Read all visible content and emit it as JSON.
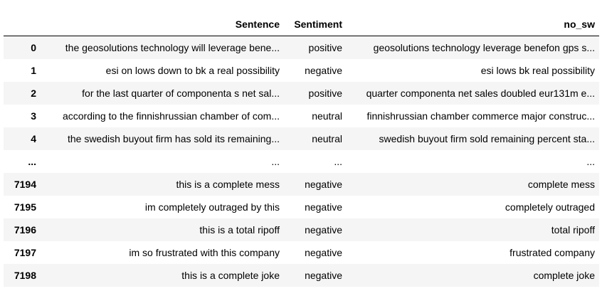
{
  "table": {
    "columns": [
      "",
      "Sentence",
      "Sentiment",
      "no_sw"
    ],
    "rows": [
      {
        "index": "0",
        "sentence": "the geosolutions technology will leverage bene...",
        "sentiment": "positive",
        "no_sw": "geosolutions technology leverage benefon gps s..."
      },
      {
        "index": "1",
        "sentence": "esi on lows down to bk a real possibility",
        "sentiment": "negative",
        "no_sw": "esi lows bk real possibility"
      },
      {
        "index": "2",
        "sentence": "for the last quarter of componenta s net sal...",
        "sentiment": "positive",
        "no_sw": "quarter componenta net sales doubled eur131m e..."
      },
      {
        "index": "3",
        "sentence": "according to the finnishrussian chamber of com...",
        "sentiment": "neutral",
        "no_sw": "finnishrussian chamber commerce major construc..."
      },
      {
        "index": "4",
        "sentence": "the swedish buyout firm has sold its remaining...",
        "sentiment": "neutral",
        "no_sw": "swedish buyout firm sold remaining percent sta..."
      },
      {
        "index": "...",
        "sentence": "...",
        "sentiment": "...",
        "no_sw": "..."
      },
      {
        "index": "7194",
        "sentence": "this is a complete mess",
        "sentiment": "negative",
        "no_sw": "complete mess"
      },
      {
        "index": "7195",
        "sentence": "im completely outraged by this",
        "sentiment": "negative",
        "no_sw": "completely outraged"
      },
      {
        "index": "7196",
        "sentence": "this is a total ripoff",
        "sentiment": "negative",
        "no_sw": "total ripoff"
      },
      {
        "index": "7197",
        "sentence": "im so frustrated with this company",
        "sentiment": "negative",
        "no_sw": "frustrated company"
      },
      {
        "index": "7198",
        "sentence": "this is a complete joke",
        "sentiment": "negative",
        "no_sw": "complete joke"
      }
    ]
  }
}
